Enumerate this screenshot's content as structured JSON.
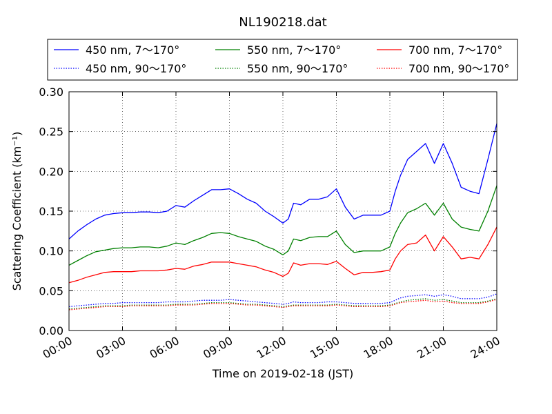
{
  "chart_data": {
    "type": "line",
    "title": "NL190218.dat",
    "xlabel": "Time on 2019-02-18 (JST)",
    "ylabel": "Scattering Coefficient (km⁻¹)",
    "xlim": [
      0,
      24
    ],
    "ylim": [
      0,
      0.3
    ],
    "xticks": [
      0,
      3,
      6,
      9,
      12,
      15,
      18,
      21,
      24
    ],
    "xtick_labels": [
      "00:00",
      "03:00",
      "06:00",
      "09:00",
      "12:00",
      "15:00",
      "18:00",
      "21:00",
      "24:00"
    ],
    "yticks": [
      0,
      0.05,
      0.1,
      0.15,
      0.2,
      0.25,
      0.3
    ],
    "ytick_labels": [
      "0.00",
      "0.05",
      "0.10",
      "0.15",
      "0.20",
      "0.25",
      "0.30"
    ],
    "grid": true,
    "legend_placement": "above plot, three columns",
    "x": [
      0,
      0.5,
      1,
      1.5,
      2,
      2.5,
      3,
      3.5,
      4,
      4.5,
      5,
      5.5,
      6,
      6.5,
      7,
      7.5,
      8,
      8.5,
      9,
      9.5,
      10,
      10.5,
      11,
      11.5,
      12,
      12.3,
      12.6,
      13,
      13.5,
      14,
      14.5,
      15,
      15.5,
      16,
      16.5,
      17,
      17.5,
      18,
      18.3,
      18.6,
      19,
      19.5,
      20,
      20.5,
      21,
      21.5,
      22,
      22.5,
      23,
      23.5,
      24
    ],
    "series": [
      {
        "name": "450 nm, 7～170°",
        "color": "#0000ff",
        "style": "solid",
        "values": [
          0.115,
          0.125,
          0.133,
          0.14,
          0.145,
          0.147,
          0.148,
          0.148,
          0.149,
          0.149,
          0.148,
          0.15,
          0.157,
          0.155,
          0.163,
          0.17,
          0.177,
          0.177,
          0.178,
          0.172,
          0.165,
          0.16,
          0.15,
          0.143,
          0.135,
          0.14,
          0.16,
          0.158,
          0.165,
          0.165,
          0.168,
          0.178,
          0.155,
          0.14,
          0.145,
          0.145,
          0.145,
          0.15,
          0.175,
          0.195,
          0.215,
          0.225,
          0.235,
          0.21,
          0.235,
          0.21,
          0.18,
          0.175,
          0.172,
          0.215,
          0.26
        ]
      },
      {
        "name": "550 nm, 7～170°",
        "color": "#008000",
        "style": "solid",
        "values": [
          0.082,
          0.088,
          0.094,
          0.099,
          0.101,
          0.103,
          0.104,
          0.104,
          0.105,
          0.105,
          0.104,
          0.106,
          0.11,
          0.108,
          0.113,
          0.117,
          0.122,
          0.123,
          0.122,
          0.118,
          0.115,
          0.112,
          0.106,
          0.102,
          0.095,
          0.1,
          0.115,
          0.113,
          0.117,
          0.118,
          0.118,
          0.125,
          0.108,
          0.098,
          0.1,
          0.1,
          0.1,
          0.105,
          0.122,
          0.135,
          0.148,
          0.153,
          0.16,
          0.145,
          0.16,
          0.14,
          0.13,
          0.127,
          0.125,
          0.15,
          0.182
        ]
      },
      {
        "name": "700 nm, 7～170°",
        "color": "#ff0000",
        "style": "solid",
        "values": [
          0.06,
          0.063,
          0.067,
          0.07,
          0.073,
          0.074,
          0.074,
          0.074,
          0.075,
          0.075,
          0.075,
          0.076,
          0.078,
          0.077,
          0.081,
          0.083,
          0.086,
          0.086,
          0.086,
          0.084,
          0.082,
          0.08,
          0.076,
          0.073,
          0.068,
          0.072,
          0.085,
          0.082,
          0.084,
          0.084,
          0.083,
          0.087,
          0.078,
          0.07,
          0.073,
          0.073,
          0.074,
          0.076,
          0.09,
          0.1,
          0.108,
          0.11,
          0.12,
          0.1,
          0.118,
          0.105,
          0.09,
          0.092,
          0.09,
          0.108,
          0.13
        ]
      },
      {
        "name": "450 nm, 90～170°",
        "color": "#0000ff",
        "style": "dotted",
        "values": [
          0.03,
          0.031,
          0.032,
          0.033,
          0.034,
          0.034,
          0.035,
          0.035,
          0.035,
          0.035,
          0.035,
          0.036,
          0.036,
          0.036,
          0.037,
          0.038,
          0.038,
          0.038,
          0.039,
          0.038,
          0.037,
          0.036,
          0.035,
          0.034,
          0.033,
          0.034,
          0.036,
          0.035,
          0.035,
          0.035,
          0.036,
          0.036,
          0.035,
          0.034,
          0.034,
          0.034,
          0.034,
          0.035,
          0.038,
          0.041,
          0.043,
          0.044,
          0.045,
          0.043,
          0.045,
          0.043,
          0.04,
          0.04,
          0.04,
          0.042,
          0.046
        ]
      },
      {
        "name": "550 nm, 90～170°",
        "color": "#008000",
        "style": "dotted",
        "values": [
          0.027,
          0.028,
          0.029,
          0.03,
          0.031,
          0.031,
          0.031,
          0.032,
          0.032,
          0.032,
          0.032,
          0.032,
          0.033,
          0.033,
          0.033,
          0.034,
          0.035,
          0.035,
          0.035,
          0.034,
          0.033,
          0.033,
          0.032,
          0.031,
          0.03,
          0.031,
          0.032,
          0.032,
          0.032,
          0.032,
          0.032,
          0.033,
          0.032,
          0.031,
          0.031,
          0.031,
          0.031,
          0.032,
          0.034,
          0.036,
          0.038,
          0.039,
          0.04,
          0.038,
          0.039,
          0.037,
          0.035,
          0.035,
          0.035,
          0.037,
          0.04
        ]
      },
      {
        "name": "700 nm, 90～170°",
        "color": "#ff0000",
        "style": "dotted",
        "values": [
          0.026,
          0.027,
          0.028,
          0.029,
          0.03,
          0.03,
          0.03,
          0.031,
          0.031,
          0.031,
          0.031,
          0.031,
          0.032,
          0.032,
          0.032,
          0.033,
          0.034,
          0.034,
          0.034,
          0.033,
          0.032,
          0.032,
          0.031,
          0.03,
          0.029,
          0.03,
          0.031,
          0.031,
          0.031,
          0.031,
          0.031,
          0.032,
          0.031,
          0.03,
          0.03,
          0.03,
          0.03,
          0.031,
          0.033,
          0.035,
          0.036,
          0.037,
          0.038,
          0.036,
          0.037,
          0.035,
          0.034,
          0.034,
          0.034,
          0.036,
          0.039
        ]
      }
    ]
  }
}
